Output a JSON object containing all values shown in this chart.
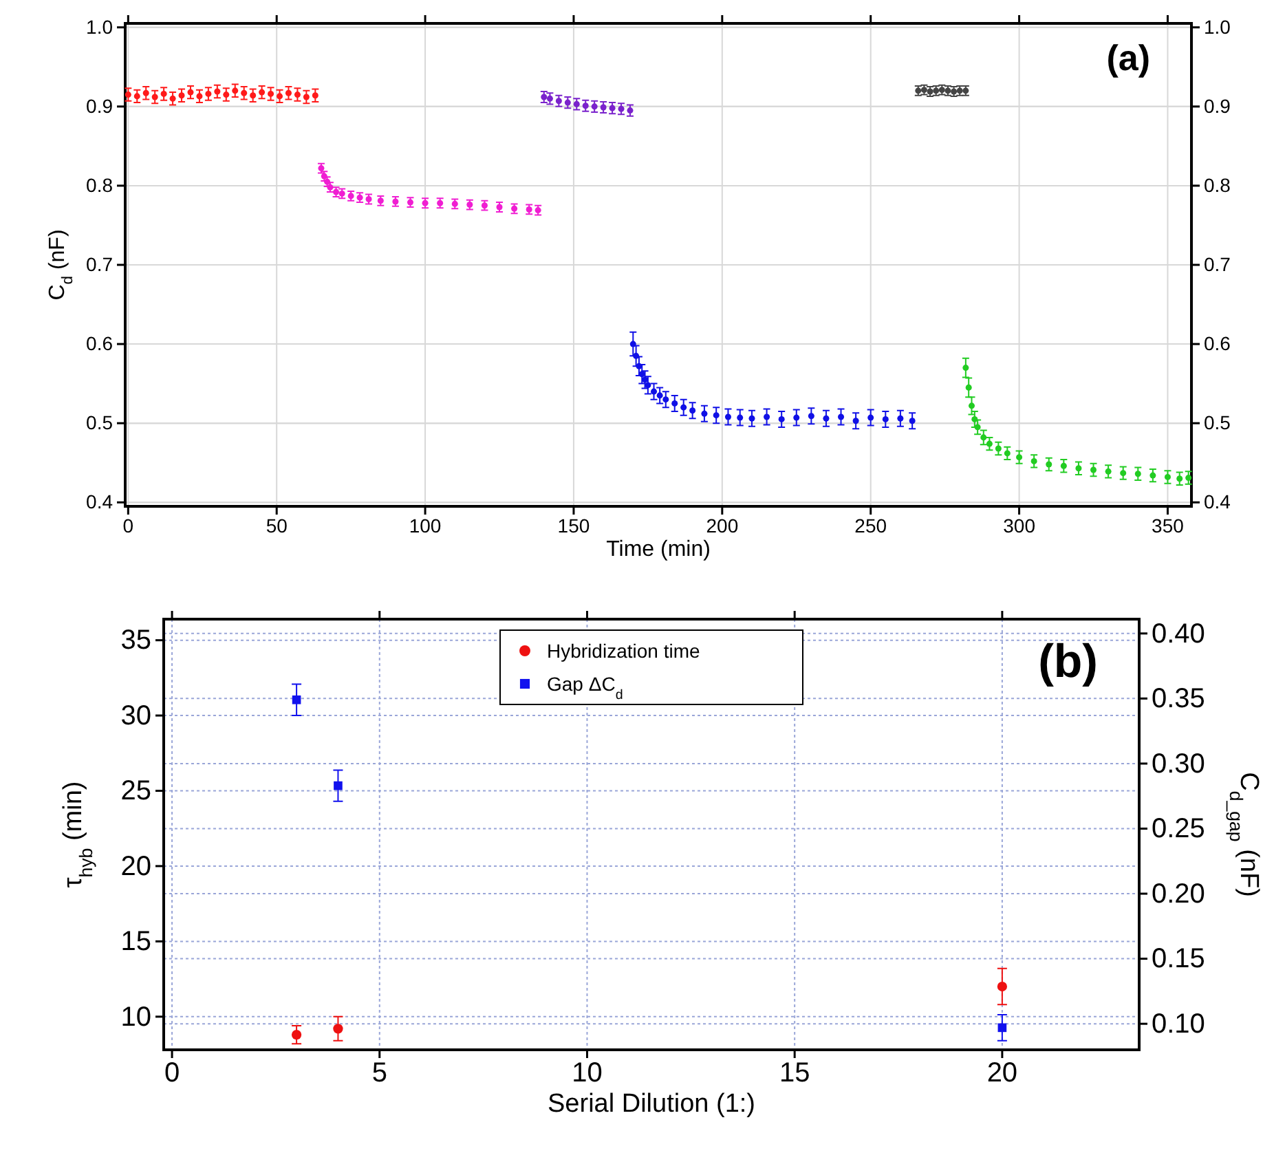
{
  "chart_data": [
    {
      "type": "scatter",
      "xlabel": "Time (min)",
      "ylabel": "C$_{d}$ (nF)",
      "xlim": [
        -1,
        358
      ],
      "ylim": [
        0.395,
        1.005
      ],
      "y2lim": [
        0.395,
        1.005
      ],
      "xticks": [
        0,
        50,
        100,
        150,
        200,
        250,
        300,
        350
      ],
      "yticks": [
        0.4,
        0.5,
        0.6,
        0.7,
        0.8,
        0.9,
        {
          "value": 1,
          "label": "1.0"
        }
      ],
      "y2ticks": [
        0.4,
        0.5,
        0.6,
        0.7,
        0.8,
        0.9,
        {
          "value": 1,
          "label": "1.0"
        }
      ],
      "grid": true,
      "marker": "circle",
      "annotations": [
        "(a)"
      ],
      "series": [
        {
          "color": "#ff1a1a",
          "x": [
            0,
            3,
            6,
            9,
            12,
            15,
            18,
            21,
            24,
            27,
            30,
            33,
            36,
            39,
            42,
            45,
            48,
            51,
            54,
            57,
            60,
            63
          ],
          "values": [
            0.915,
            0.913,
            0.917,
            0.912,
            0.916,
            0.91,
            0.914,
            0.918,
            0.913,
            0.916,
            0.919,
            0.915,
            0.92,
            0.917,
            0.914,
            0.918,
            0.916,
            0.913,
            0.917,
            0.915,
            0.912,
            0.914
          ],
          "errors": [
            0.008,
            0.008,
            0.008,
            0.008,
            0.008,
            0.008,
            0.008,
            0.008,
            0.008,
            0.008,
            0.008,
            0.008,
            0.008,
            0.008,
            0.008,
            0.008,
            0.008,
            0.008,
            0.008,
            0.008,
            0.008,
            0.008
          ]
        },
        {
          "color": "#f01ed2",
          "x": [
            65,
            66,
            67,
            68,
            70,
            72,
            75,
            78,
            81,
            85,
            90,
            95,
            100,
            105,
            110,
            115,
            120,
            125,
            130,
            135,
            138
          ],
          "values": [
            0.822,
            0.812,
            0.805,
            0.798,
            0.792,
            0.79,
            0.787,
            0.785,
            0.783,
            0.781,
            0.78,
            0.779,
            0.778,
            0.778,
            0.777,
            0.776,
            0.775,
            0.773,
            0.771,
            0.77,
            0.769
          ],
          "errors": [
            0.006,
            0.006,
            0.006,
            0.006,
            0.006,
            0.006,
            0.006,
            0.006,
            0.006,
            0.006,
            0.006,
            0.006,
            0.006,
            0.006,
            0.006,
            0.006,
            0.006,
            0.006,
            0.006,
            0.006,
            0.006
          ]
        },
        {
          "color": "#7a22cc",
          "x": [
            140,
            142,
            145,
            148,
            151,
            154,
            157,
            160,
            163,
            166,
            169
          ],
          "values": [
            0.912,
            0.91,
            0.907,
            0.905,
            0.903,
            0.901,
            0.9,
            0.899,
            0.898,
            0.897,
            0.895
          ],
          "errors": [
            0.007,
            0.007,
            0.007,
            0.007,
            0.007,
            0.007,
            0.007,
            0.007,
            0.007,
            0.007,
            0.007
          ]
        },
        {
          "color": "#1010e6",
          "x": [
            170,
            171,
            172,
            173,
            174,
            175,
            177,
            179,
            181,
            184,
            187,
            190,
            194,
            198,
            202,
            206,
            210,
            215,
            220,
            225,
            230,
            235,
            240,
            245,
            250,
            255,
            260,
            264
          ],
          "values": [
            0.6,
            0.585,
            0.572,
            0.562,
            0.555,
            0.548,
            0.54,
            0.535,
            0.53,
            0.525,
            0.52,
            0.516,
            0.512,
            0.51,
            0.508,
            0.507,
            0.506,
            0.508,
            0.505,
            0.507,
            0.509,
            0.506,
            0.508,
            0.503,
            0.507,
            0.505,
            0.506,
            0.503
          ],
          "errors": [
            0.015,
            0.013,
            0.012,
            0.012,
            0.011,
            0.011,
            0.01,
            0.01,
            0.01,
            0.01,
            0.01,
            0.01,
            0.01,
            0.01,
            0.01,
            0.01,
            0.01,
            0.01,
            0.01,
            0.01,
            0.01,
            0.01,
            0.01,
            0.01,
            0.01,
            0.01,
            0.01,
            0.01
          ]
        },
        {
          "color": "#444444",
          "x": [
            266,
            268,
            270,
            272,
            274,
            276,
            278,
            280,
            282
          ],
          "values": [
            0.92,
            0.921,
            0.919,
            0.92,
            0.921,
            0.92,
            0.919,
            0.92,
            0.92
          ],
          "errors": [
            0.006,
            0.006,
            0.006,
            0.006,
            0.006,
            0.006,
            0.006,
            0.006,
            0.006
          ]
        },
        {
          "color": "#22cc22",
          "x": [
            282,
            283,
            284,
            285,
            286,
            288,
            290,
            293,
            296,
            300,
            305,
            310,
            315,
            320,
            325,
            330,
            335,
            340,
            345,
            350,
            354,
            357
          ],
          "values": [
            0.57,
            0.545,
            0.522,
            0.505,
            0.495,
            0.482,
            0.474,
            0.468,
            0.462,
            0.457,
            0.452,
            0.448,
            0.446,
            0.443,
            0.441,
            0.439,
            0.437,
            0.436,
            0.434,
            0.432,
            0.43,
            0.431
          ],
          "errors": [
            0.012,
            0.012,
            0.011,
            0.01,
            0.009,
            0.009,
            0.008,
            0.008,
            0.008,
            0.008,
            0.008,
            0.008,
            0.008,
            0.008,
            0.008,
            0.008,
            0.008,
            0.008,
            0.008,
            0.008,
            0.008,
            0.008
          ]
        }
      ]
    },
    {
      "type": "scatter",
      "xlabel": "Serial Dilution (1:)",
      "ylabel": "τ$_{hyb}$ (min)",
      "y2label": "C$_{d_gap}$ (nF)",
      "xlim": [
        -0.2,
        23.3
      ],
      "ylim": [
        7.8,
        36.4
      ],
      "y2lim": [
        0.08,
        0.411
      ],
      "xticks": [
        0,
        5,
        10,
        15,
        20
      ],
      "yticks": [
        10,
        15,
        20,
        25,
        30,
        35
      ],
      "y2ticks": [
        {
          "value": 0.1,
          "label": "0.10"
        },
        {
          "value": 0.15,
          "label": "0.15"
        },
        {
          "value": 0.2,
          "label": "0.20"
        },
        {
          "value": 0.25,
          "label": "0.25"
        },
        {
          "value": 0.3,
          "label": "0.30"
        },
        {
          "value": 0.35,
          "label": "0.35"
        },
        {
          "value": 0.4,
          "label": "0.40"
        }
      ],
      "grid": true,
      "legend": "top",
      "annotations": [
        "(b)"
      ],
      "series": [
        {
          "name": "Hybridization time",
          "color": "#ee1111",
          "marker": "circle",
          "x": [
            3,
            4,
            20
          ],
          "values": [
            8.8,
            9.2,
            12
          ],
          "errors": [
            0.6,
            0.8,
            1.2
          ]
        },
        {
          "name": "Gap ΔC$_{d}$",
          "color": "#1111ee",
          "marker": "square",
          "axis": "y2",
          "x": [
            3,
            4,
            20
          ],
          "values": [
            0.349,
            0.283,
            0.097
          ],
          "errors": [
            0.012,
            0.012,
            0.01
          ]
        }
      ]
    }
  ]
}
